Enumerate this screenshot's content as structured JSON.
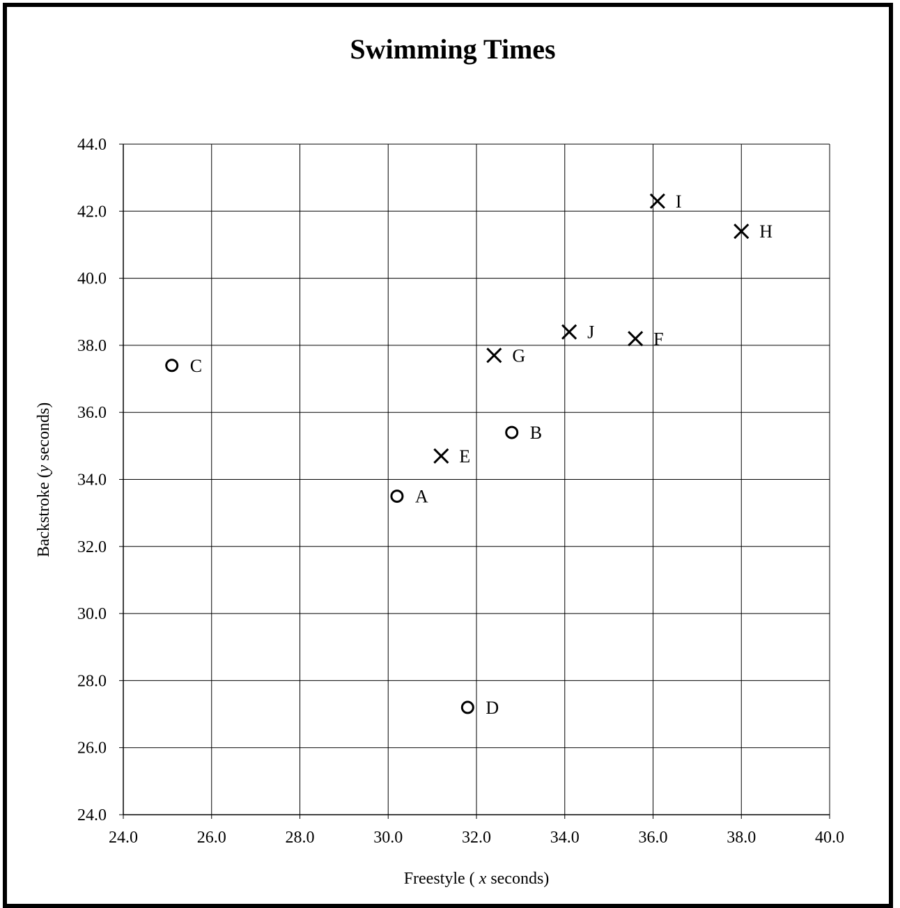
{
  "chart_data": {
    "type": "scatter",
    "title": "Swimming Times",
    "xlabel": {
      "prefix": "Freestyle ( ",
      "var": "x",
      "suffix": " seconds)"
    },
    "ylabel": {
      "prefix": "Backstroke (",
      "var": "y",
      "suffix": " seconds)"
    },
    "xlim": [
      24.0,
      40.0
    ],
    "ylim": [
      24.0,
      44.0
    ],
    "xticks": [
      "24.0",
      "26.0",
      "28.0",
      "30.0",
      "32.0",
      "34.0",
      "36.0",
      "38.0",
      "40.0"
    ],
    "yticks": [
      "24.0",
      "26.0",
      "28.0",
      "30.0",
      "32.0",
      "34.0",
      "36.0",
      "38.0",
      "40.0",
      "42.0",
      "44.0"
    ],
    "grid": true,
    "points": [
      {
        "label": "A",
        "x": 30.2,
        "y": 33.5,
        "marker": "circle"
      },
      {
        "label": "B",
        "x": 32.8,
        "y": 35.4,
        "marker": "circle"
      },
      {
        "label": "C",
        "x": 25.1,
        "y": 37.4,
        "marker": "circle"
      },
      {
        "label": "D",
        "x": 31.8,
        "y": 27.2,
        "marker": "circle"
      },
      {
        "label": "E",
        "x": 31.2,
        "y": 34.7,
        "marker": "cross"
      },
      {
        "label": "F",
        "x": 35.6,
        "y": 38.2,
        "marker": "cross"
      },
      {
        "label": "G",
        "x": 32.4,
        "y": 37.7,
        "marker": "cross"
      },
      {
        "label": "H",
        "x": 38.0,
        "y": 41.4,
        "marker": "cross"
      },
      {
        "label": "I",
        "x": 36.1,
        "y": 42.3,
        "marker": "cross"
      },
      {
        "label": "J",
        "x": 34.1,
        "y": 38.4,
        "marker": "cross"
      }
    ],
    "colors": {
      "ink": "#000000",
      "grid": "#000000",
      "background": "#ffffff"
    }
  }
}
